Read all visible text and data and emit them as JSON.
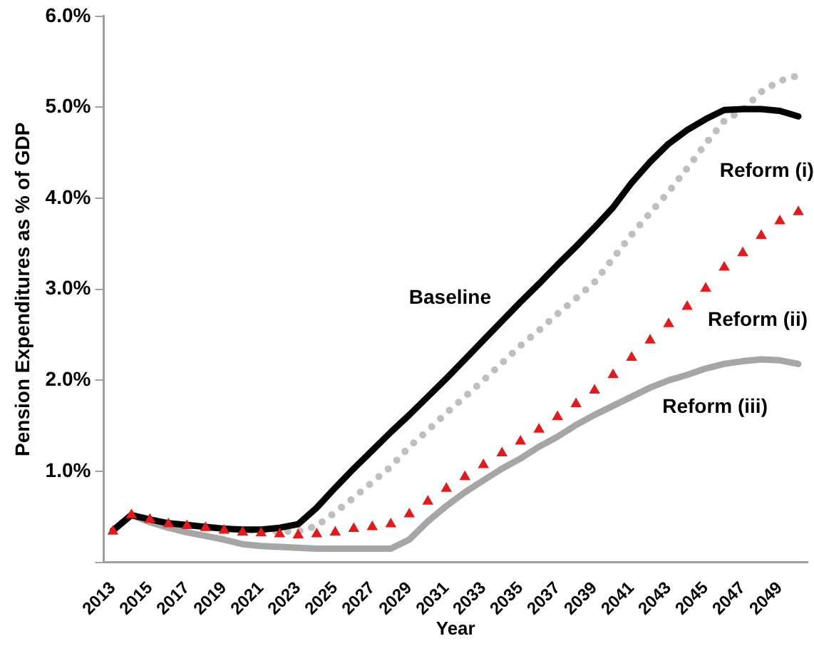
{
  "chart_data": {
    "type": "line",
    "xlabel": "Year",
    "ylabel": "Pension Expenditures as % of GDP",
    "x": [
      2013,
      2014,
      2015,
      2016,
      2017,
      2018,
      2019,
      2020,
      2021,
      2022,
      2023,
      2024,
      2025,
      2026,
      2027,
      2028,
      2029,
      2030,
      2031,
      2032,
      2033,
      2034,
      2035,
      2036,
      2037,
      2038,
      2039,
      2040,
      2041,
      2042,
      2043,
      2044,
      2045,
      2046,
      2047,
      2048,
      2049,
      2050
    ],
    "xlim": [
      2012.5,
      2050.5
    ],
    "xticks": [
      2013,
      2015,
      2017,
      2019,
      2021,
      2023,
      2025,
      2027,
      2029,
      2031,
      2033,
      2035,
      2037,
      2039,
      2041,
      2043,
      2045,
      2047,
      2049
    ],
    "ylim": [
      0,
      6
    ],
    "yticks": [
      {
        "value": 0,
        "label": null
      },
      {
        "value": 1,
        "label": "1.0%"
      },
      {
        "value": 2,
        "label": "2.0%"
      },
      {
        "value": 3,
        "label": "3.0%"
      },
      {
        "value": 4,
        "label": "4.0%"
      },
      {
        "value": 5,
        "label": "5.0%"
      },
      {
        "value": 6,
        "label": "6.0%"
      }
    ],
    "grid": false,
    "legend": false,
    "marker": "none",
    "series": [
      {
        "name": "Baseline",
        "color": "#000000",
        "line_style": "solid",
        "values": [
          0.35,
          0.52,
          0.47,
          0.43,
          0.41,
          0.39,
          0.37,
          0.36,
          0.36,
          0.38,
          0.42,
          0.6,
          0.82,
          1.03,
          1.23,
          1.43,
          1.62,
          1.82,
          2.02,
          2.23,
          2.44,
          2.65,
          2.86,
          3.06,
          3.27,
          3.47,
          3.68,
          3.9,
          4.17,
          4.4,
          4.6,
          4.75,
          4.87,
          4.97,
          4.98,
          4.98,
          4.96,
          4.9
        ]
      },
      {
        "name": "Reform (i)",
        "color": "#bfbfbf",
        "line_style": "dotted",
        "values": [
          0.35,
          0.52,
          0.47,
          0.43,
          0.41,
          0.39,
          0.37,
          0.36,
          0.35,
          0.34,
          0.34,
          0.4,
          0.55,
          0.71,
          0.88,
          1.05,
          1.27,
          1.45,
          1.64,
          1.82,
          2.0,
          2.19,
          2.38,
          2.55,
          2.73,
          2.9,
          3.08,
          3.34,
          3.6,
          3.84,
          4.07,
          4.33,
          4.6,
          4.85,
          4.97,
          5.17,
          5.29,
          5.35
        ]
      },
      {
        "name": "Reform (ii)",
        "type": "scatter",
        "marker": "triangle",
        "color": "#e31a1c",
        "values": [
          0.34,
          0.52,
          0.47,
          0.42,
          0.4,
          0.38,
          0.35,
          0.33,
          0.32,
          0.31,
          0.3,
          0.31,
          0.33,
          0.37,
          0.39,
          0.42,
          0.53,
          0.67,
          0.81,
          0.94,
          1.07,
          1.2,
          1.33,
          1.46,
          1.6,
          1.74,
          1.89,
          2.06,
          2.25,
          2.44,
          2.62,
          2.81,
          3.01,
          3.24,
          3.4,
          3.59,
          3.75,
          3.85
        ]
      },
      {
        "name": "Reform (iii)",
        "color": "#a6a6a6",
        "line_style": "solid",
        "values": [
          0.35,
          0.52,
          0.44,
          0.38,
          0.33,
          0.29,
          0.25,
          0.2,
          0.18,
          0.17,
          0.16,
          0.15,
          0.15,
          0.15,
          0.15,
          0.15,
          0.25,
          0.45,
          0.62,
          0.77,
          0.9,
          1.03,
          1.14,
          1.27,
          1.38,
          1.51,
          1.62,
          1.72,
          1.82,
          1.92,
          2.0,
          2.06,
          2.13,
          2.18,
          2.21,
          2.23,
          2.22,
          2.18
        ]
      }
    ]
  }
}
